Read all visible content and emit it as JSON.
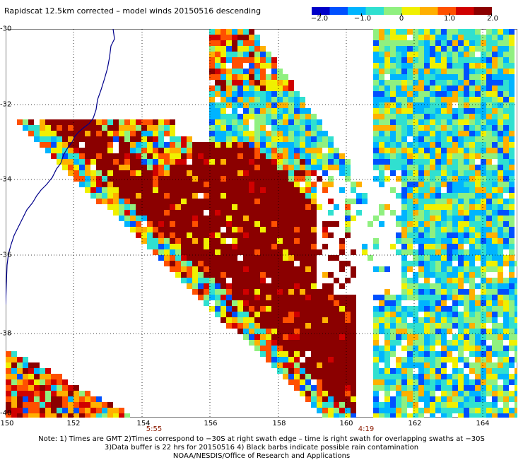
{
  "title": "Rapidscat 12.5km corrected – model winds 20150516 descending",
  "colorbar": {
    "ticks": [
      "−2.0",
      "−1.0",
      "0",
      "1.0",
      "2.0"
    ],
    "colors": [
      "#0000c8",
      "#0050ff",
      "#00b4ff",
      "#30e0d0",
      "#90f080",
      "#f0f000",
      "#ffb000",
      "#ff5000",
      "#d00000",
      "#8b0000"
    ]
  },
  "axes": {
    "lat_labels": [
      "-30",
      "-32",
      "-34",
      "-36",
      "-38",
      "-40"
    ],
    "lon_labels": [
      "150",
      "152",
      "154",
      "156",
      "158",
      "160",
      "162",
      "164"
    ]
  },
  "swath_times": [
    "5:55",
    "4:19"
  ],
  "notes": [
    "Note: 1) Times are GMT 2)Times correspond to −30S at right swath edge – time is right swath for overlapping swaths at −30S",
    "3)Data buffer is 22 hrs for 20150516 4) Black barbs indicate possible rain contamination",
    "NOAA/NESDIS/Office of Research and Applications"
  ]
}
